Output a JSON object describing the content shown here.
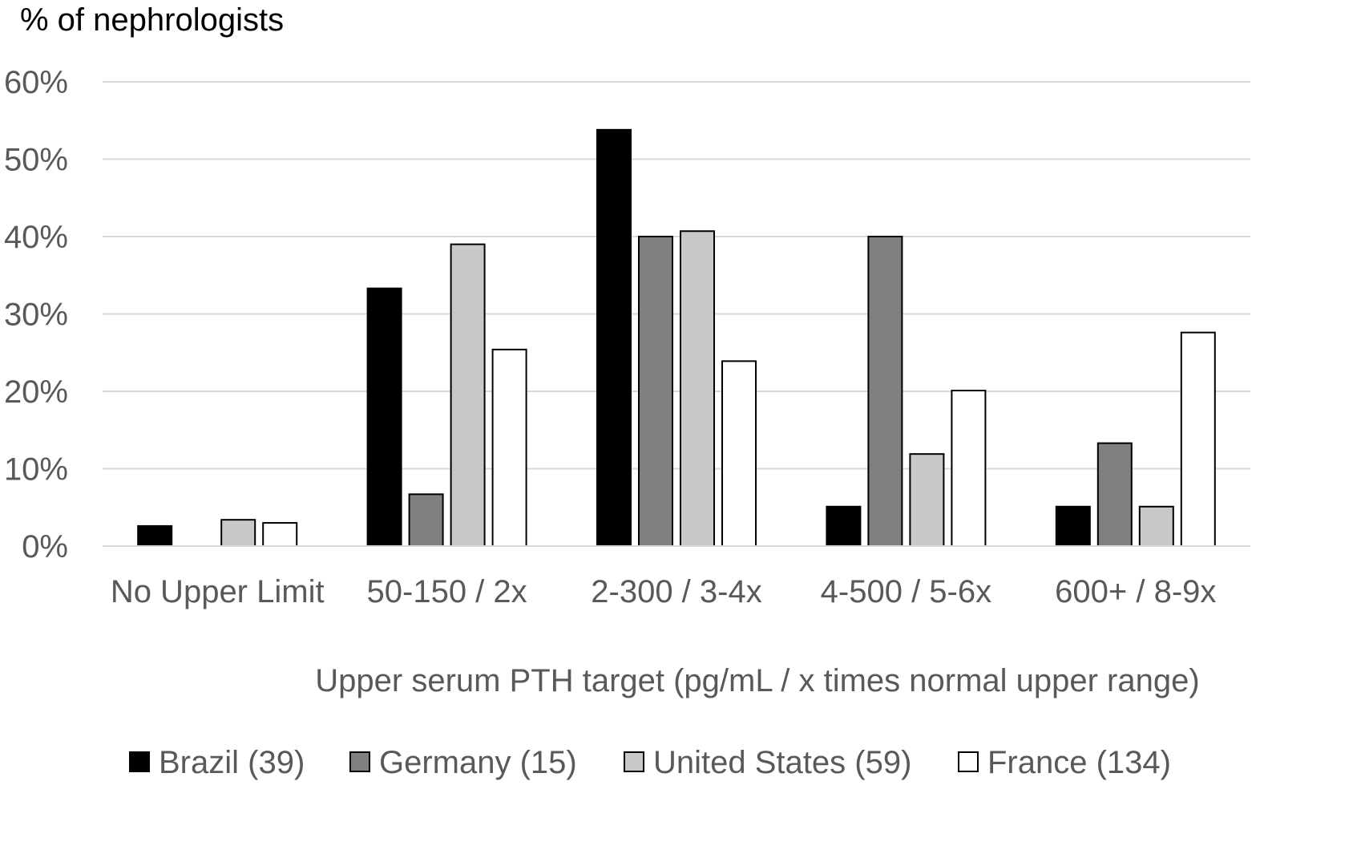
{
  "chart_data": {
    "type": "bar",
    "title": "",
    "ylabel": "% of nephrologists",
    "xlabel": "Upper serum PTH target (pg/mL / x times normal upper range)",
    "categories": [
      "No Upper Limit",
      "50-150 / 2x",
      "2-300 / 3-4x",
      "4-500 / 5-6x",
      "600+ / 8-9x"
    ],
    "ylim": [
      0,
      60
    ],
    "yticks": [
      0,
      10,
      20,
      30,
      40,
      50,
      60
    ],
    "ytick_labels": [
      "0%",
      "10%",
      "20%",
      "30%",
      "40%",
      "50%",
      "60%"
    ],
    "grid": true,
    "legend_position": "bottom",
    "series": [
      {
        "name": "Brazil (39)",
        "color": "#000000",
        "values": [
          2.6,
          33.3,
          53.8,
          5.1,
          5.1
        ]
      },
      {
        "name": "Germany (15)",
        "color": "#808080",
        "values": [
          0,
          6.7,
          40.0,
          40.0,
          13.3
        ]
      },
      {
        "name": "United States (59)",
        "color": "#c8c8c8",
        "values": [
          3.4,
          39.0,
          40.7,
          11.9,
          5.1
        ]
      },
      {
        "name": "France (134)",
        "color": "#ffffff",
        "values": [
          3.0,
          25.4,
          23.9,
          20.1,
          27.6
        ]
      }
    ]
  }
}
